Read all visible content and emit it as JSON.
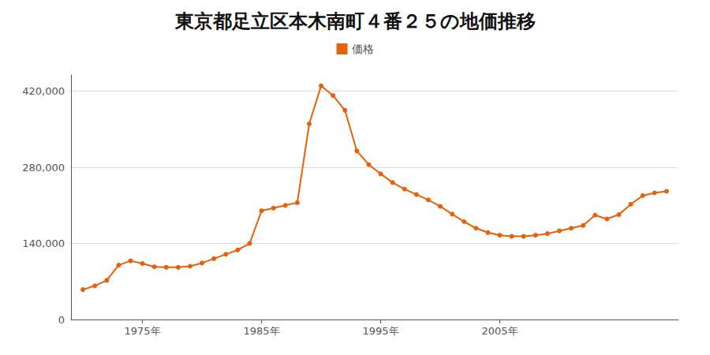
{
  "chart_data": {
    "type": "line",
    "title": "東京都足立区本木南町４番２５の地価推移",
    "x": [
      1970,
      1971,
      1972,
      1973,
      1974,
      1975,
      1976,
      1977,
      1978,
      1979,
      1980,
      1981,
      1982,
      1983,
      1984,
      1985,
      1986,
      1987,
      1988,
      1989,
      1990,
      1991,
      1992,
      1993,
      1994,
      1995,
      1996,
      1997,
      1998,
      1999,
      2000,
      2001,
      2002,
      2003,
      2004,
      2005,
      2006,
      2007,
      2008,
      2009,
      2010,
      2011,
      2012,
      2013,
      2014,
      2015,
      2016,
      2017,
      2018,
      2019
    ],
    "series": [
      {
        "name": "価格",
        "color": "#E8600A",
        "marker": "circle",
        "values": [
          55000,
          62000,
          72000,
          100000,
          108000,
          103000,
          97000,
          96000,
          96000,
          98000,
          104000,
          112000,
          120000,
          128000,
          140000,
          200000,
          205000,
          210000,
          215000,
          360000,
          430000,
          412000,
          385000,
          310000,
          285000,
          268000,
          252000,
          240000,
          230000,
          220000,
          208000,
          194000,
          180000,
          168000,
          160000,
          155000,
          153000,
          153000,
          155000,
          158000,
          163000,
          168000,
          173000,
          192000,
          185000,
          193000,
          212000,
          228000,
          233000,
          236000
        ]
      }
    ],
    "xlim": [
      1969,
      2020
    ],
    "xticks": [
      {
        "value": 1975,
        "label": "1975年"
      },
      {
        "value": 1985,
        "label": "1985年"
      },
      {
        "value": 1995,
        "label": "1995年"
      },
      {
        "value": 2005,
        "label": "2005年"
      }
    ],
    "ylim": [
      0,
      450000
    ],
    "yticks": [
      0,
      {
        "value": 140000,
        "label": "140,000"
      },
      {
        "value": 280000,
        "label": "280,000"
      },
      {
        "value": 420000,
        "label": "420,000"
      }
    ],
    "grid": true,
    "legend": "top"
  }
}
